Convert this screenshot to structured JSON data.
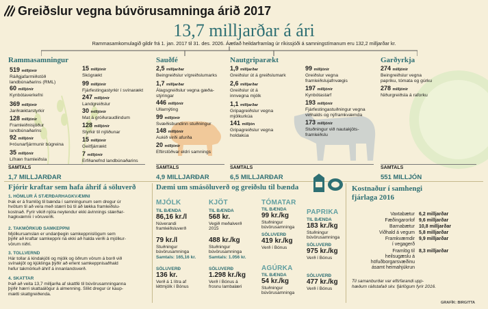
{
  "header": {
    "title": "Greiðslur vegna búvörusamninga árið 2017",
    "total": "13,7 milljarðar á ári",
    "subtitle": "Rammasamkomulagið gildir frá 1. jan. 2017 til 31. des. 2026. Áætlað heildarframlag úr ríkissjóði á samningstímanum eru 132,2 milljarðar kr."
  },
  "colors": {
    "accent": "#2e6f73",
    "background": "#f6efd9",
    "light_accent": "#5f9ea0"
  },
  "sections": {
    "rammasamningur": {
      "title": "Rammasamningur",
      "col1": [
        {
          "value": "519",
          "unit": "milljónir",
          "label": [
            "Ráðgjafarmiðstöð",
            "landbúnaðarins (RML)"
          ]
        },
        {
          "value": "60",
          "unit": "milljónir",
          "label": [
            "Kynbótaverkefni"
          ]
        },
        {
          "value": "369",
          "unit": "milljónir",
          "label": [
            "Jarðræktarstyrkir"
          ]
        },
        {
          "value": "128",
          "unit": "milljónir",
          "label": [
            "Framleiðnisjóður",
            "landbúnaðarins"
          ]
        },
        {
          "value": "92",
          "unit": "milljónir",
          "label": [
            "Þróunarfjármunir búgreina"
          ]
        },
        {
          "value": "35",
          "unit": "milljónir",
          "label": [
            "Lífræn framleiðsla"
          ]
        }
      ],
      "col2": [
        {
          "value": "15",
          "unit": "milljónir",
          "label": [
            "Skógrækt"
          ]
        },
        {
          "value": "99",
          "unit": "milljónir",
          "label": [
            "Fjárfestingastyrkir í svínarækt"
          ]
        },
        {
          "value": "247",
          "unit": "milljónir",
          "label": [
            "Landgreiðslur"
          ]
        },
        {
          "value": "30",
          "unit": "milljónir",
          "label": [
            "Mat á gróðuraudlindum"
          ]
        },
        {
          "value": "128",
          "unit": "milljónir",
          "label": [
            "Styrkir til nýliðunar"
          ]
        },
        {
          "value": "15",
          "unit": "milljónir",
          "label": [
            "Geitfjárrækt"
          ]
        },
        {
          "value": "7",
          "unit": "milljónir",
          "label": [
            "Erfðanefnd landbúnaðarins"
          ]
        }
      ],
      "total_label": "SAMTALS",
      "total_value": "1,7 MILLJARÐAR"
    },
    "saudfe": {
      "title": "Sauðfé",
      "items": [
        {
          "value": "2,5",
          "unit": "milljarðar",
          "label": [
            "Beingreiðslur v/greiðslumarks"
          ]
        },
        {
          "value": "1,7",
          "unit": "milljarðar",
          "label": [
            "Álagsgreiðslur vegna gæða-",
            "stýringar"
          ]
        },
        {
          "value": "446",
          "unit": "milljónir",
          "label": [
            "Ullarnýting"
          ]
        },
        {
          "value": "99",
          "unit": "milljónir",
          "label": [
            "Svæðisbundinn stuðningur"
          ]
        },
        {
          "value": "148",
          "unit": "milljónir",
          "label": [
            "Aukið virði afurða"
          ]
        },
        {
          "value": "20",
          "unit": "milljónir",
          "label": [
            "Eftirstöðvar eldri samnings"
          ]
        }
      ],
      "total_label": "SAMTALS",
      "total_value": "4,9 MILLJARÐAR"
    },
    "nautgripa": {
      "title": "Nautgriparækt",
      "col1": [
        {
          "value": "1,9",
          "unit": "milljarðar",
          "label": [
            "Greiðslur út á greiðslumark"
          ]
        },
        {
          "value": "2,6",
          "unit": "milljarðar",
          "label": [
            "Greiðslur út á",
            "innvegna mjólk"
          ]
        },
        {
          "value": "1,1",
          "unit": "milljarðar",
          "label": [
            "Gripagreiðslur vegna",
            "mjólkurkúa"
          ]
        },
        {
          "value": "141",
          "unit": "milljón",
          "label": [
            "Gripagreiðslur vegna",
            "holdakúa"
          ]
        }
      ],
      "col2": [
        {
          "value": "99",
          "unit": "milljónir",
          "label": [
            "Greiðslur vegna",
            "framleiðslujafnvægis"
          ]
        },
        {
          "value": "197",
          "unit": "milljónir",
          "label": [
            "Kynbótastarf"
          ]
        },
        {
          "value": "193",
          "unit": "milljónir",
          "label": [
            "Fjárfestingastuðningur vegna",
            "viðhalds og nýframkvæmda"
          ]
        },
        {
          "value": "173",
          "unit": "milljónir",
          "label": [
            "Stuðningur við nautakjöts-",
            "framleiðslu"
          ]
        }
      ],
      "total_label": "SAMTALS",
      "total_value": "6,5 MILLJARÐAR"
    },
    "gardyrkja": {
      "title": "Garðyrkja",
      "items": [
        {
          "value": "274",
          "unit": "milljónir",
          "label": [
            "Beingreiðslur vegna",
            "papriku, tómata og gúrku"
          ]
        },
        {
          "value": "278",
          "unit": "milljónir",
          "label": [
            "Niðurgreiðsla á raforku"
          ]
        }
      ],
      "total_label": "SAMTALS",
      "total_value": "551 MILLJÓN"
    }
  },
  "forces": {
    "title": "Fjórir kraftar sem hafa áhrif á söluverð",
    "items": [
      {
        "head": "1. HÖMLUR Á STÆRÐARHAGKVÆMNI",
        "body": [
          "Þak er á framlög til bænda í samningunum sem dregur úr",
          "hvötum til að vera með stærri bú til að lækka framleiðslu-",
          "kostnað. Fyrir vikið njóta neytendur ekki ávinnings stærðar-",
          "hagkvæmni í vöruverði."
        ]
      },
      {
        "head": "2. TAKMÖRKUÐ SAMKEPPNI",
        "body": [
          "Mjólkursamslan er undanþegin samkeppnislögum sem",
          "þýðir að kraftar samkeppni ná ekki að halda verði á mjólkur-",
          "vörum niðri."
        ]
      },
      {
        "head": "3. TOLLVERND",
        "body": [
          "Hár tollar á kindakjöti og mjólk og öðrum vörum á borð við",
          "svínakjöt og kjúklinga þýðir að erlent samkeppnisaðhald",
          "hefur takmörkuð áhrif á innanlandsverð."
        ]
      },
      {
        "head": "4. SKATTAR",
        "body": [
          "Það að veita 13,7 milljarða af skattfé til búvörusamninganna",
          "þýðir hærri skattaálögur á almenning. Slíkt dregur úr kaup-",
          "mætti skattgreiðenda."
        ]
      }
    ]
  },
  "examples": {
    "title": "Dæmi um smásöluverð og greiðslu til bænda",
    "mjolk": {
      "name": "MJÓLK",
      "til_baenda_label": "TIL BÆNDA",
      "til_baenda_value": "86,16 kr./l",
      "til_baenda_desc": [
        "Núverandi",
        "framleiðsluverð"
      ],
      "stud_value": "79 kr./l",
      "stud_desc": [
        "Stuðningur",
        "búvörusamninga"
      ],
      "note": "Samtals: 165,16 kr.",
      "soluverd_label": "SÖLUVERÐ",
      "soluverd_value": "136 kr.",
      "soluverd_desc": [
        "Verð á 1 lítra af",
        "léttmjólk í Bónus"
      ]
    },
    "kjot": {
      "name": "KJÖT",
      "til_baenda_label": "TIL BÆNDA",
      "til_baenda_value": "568 kr.",
      "til_baenda_desc": [
        "Vegið meðalverð",
        "2015"
      ],
      "stud_value": "488 kr./kg",
      "stud_desc": [
        "Stuðningur",
        "búvörusamninga"
      ],
      "note": "Samtals: 1.056 kr.",
      "soluverd_label": "SÖLUVERÐ",
      "soluverd_value": "1.298 kr./kg",
      "soluverd_desc": [
        "Verð í Bónus á",
        "frosnu lambalæri"
      ]
    },
    "tomatar": {
      "name": "TÓMATAR",
      "til_baenda_label": "TIL BÆNDA",
      "til_baenda_value": "99 kr./kg",
      "til_baenda_desc": [
        "Stuðningur",
        "búvörusamninga"
      ],
      "soluverd_label": "SÖLUVERÐ",
      "soluverd_value": "419 kr./kg",
      "soluverd_desc": [
        "Verð í Bónus"
      ]
    },
    "agurka": {
      "name": "AGÚRKA",
      "til_baenda_label": "TIL BÆNDA",
      "til_baenda_value": "54 kr./kg",
      "til_baenda_desc": [
        "Stuðningur",
        "búvörusamninga"
      ]
    },
    "paprika": {
      "name": "PAPRIKA",
      "til_baenda_label": "TIL BÆNDA",
      "til_baenda_value": "183 kr./kg",
      "til_baenda_desc": [
        "Stuðningur",
        "búvörusamninga"
      ],
      "soluverd_label": "SÖLUVERÐ",
      "soluverd_value": "975 kr./kg",
      "soluverd_desc": [
        "Verð í Bónus"
      ],
      "agurka_soluverd_label": "SÖLUVERÐ",
      "agurka_soluverd_value": "477 kr./kg",
      "agurka_soluverd_desc": [
        "Verð í Bónus"
      ]
    }
  },
  "budget": {
    "title": [
      "Kostnaður í samhengi",
      "fjárlaga 2016"
    ],
    "rows": [
      {
        "label": [
          "Vaxtabætur"
        ],
        "value": "6,2 milljarðar"
      },
      {
        "label": [
          "Fæðingarorlof"
        ],
        "value": "9,6 milljarðar"
      },
      {
        "label": [
          "Barnabætur"
        ],
        "value": "10,8 milljarðar"
      },
      {
        "label": [
          "Viðhald á vegum"
        ],
        "value": "5,8 milljarðar"
      },
      {
        "label": [
          "Framkvæmdir",
          "í vegagerð"
        ],
        "value": "9,9 milljarðar"
      },
      {
        "label": [
          "Framlög til",
          "heilsugæslu á",
          "höfuðborgarsvæðinu",
          "ásamt heimahjúkrun"
        ],
        "value": "8,3 milljarðar"
      }
    ],
    "footnote": [
      "Til samanburðar var eftirfarandi upp-",
      "hæðum ráðstafað skv. fjárlögum fyrir 2016."
    ],
    "credit": "GRAFÍK: BIRGITTA"
  },
  "chart_data": {
    "type": "table",
    "title": "Greiðslur vegna búvörusamninga árið 2017",
    "categories": [
      "Rammasamningur",
      "Sauðfé",
      "Nautgriparækt",
      "Garðyrkja"
    ],
    "totals": [
      "1,7 MILLJARÐAR",
      "4,9 MILLJARÐAR",
      "6,5 MILLJARÐAR",
      "551 MILLJÓN"
    ]
  }
}
